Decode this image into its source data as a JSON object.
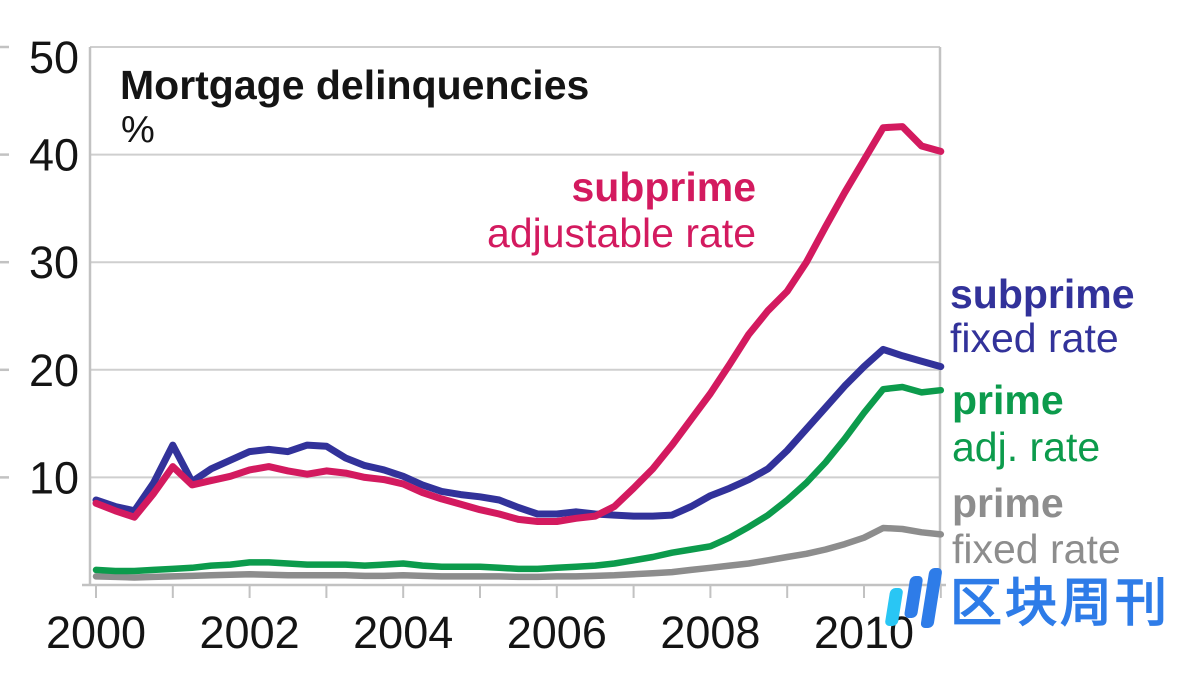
{
  "title": "Mortgage delinquencies",
  "subtitle": "%",
  "watermark": {
    "text": "区块周刊"
  },
  "axes": {
    "y_tick_labels": [
      "50",
      "40",
      "30",
      "20",
      "10"
    ],
    "x_tick_labels": [
      "2000",
      "2002",
      "2004",
      "2006",
      "2008",
      "2010"
    ]
  },
  "chart_data": {
    "type": "line",
    "title": "Mortgage delinquencies",
    "ylabel": "%",
    "xlabel": "",
    "grid": true,
    "legend_position": "annotations-on-chart",
    "xlim": [
      2000,
      2011
    ],
    "ylim": [
      0,
      50
    ],
    "y_ticks": [
      10,
      20,
      30,
      40,
      50
    ],
    "x_ticks": [
      2000,
      2001,
      2002,
      2003,
      2004,
      2005,
      2006,
      2007,
      2008,
      2009,
      2010,
      2011
    ],
    "x_label_ticks": [
      2000,
      2002,
      2004,
      2006,
      2008,
      2010
    ],
    "x_start": 2000,
    "x_step": 0.25,
    "series": [
      {
        "name": "prime fixed rate",
        "label_bold": "prime",
        "label_rest": "fixed rate",
        "color": "#8d8d8d",
        "values": [
          0.8,
          0.75,
          0.7,
          0.75,
          0.8,
          0.85,
          0.9,
          0.95,
          1.0,
          0.95,
          0.9,
          0.9,
          0.9,
          0.9,
          0.85,
          0.85,
          0.9,
          0.85,
          0.8,
          0.8,
          0.8,
          0.8,
          0.75,
          0.75,
          0.8,
          0.8,
          0.85,
          0.9,
          1.0,
          1.1,
          1.2,
          1.4,
          1.6,
          1.8,
          2.0,
          2.3,
          2.6,
          2.9,
          3.3,
          3.8,
          4.4,
          5.3,
          5.2,
          4.9,
          4.7
        ]
      },
      {
        "name": "prime adj. rate",
        "label_bold": "prime",
        "label_rest": "adj. rate",
        "color": "#0c9b4c",
        "values": [
          1.4,
          1.3,
          1.3,
          1.4,
          1.5,
          1.6,
          1.8,
          1.9,
          2.1,
          2.1,
          2.0,
          1.9,
          1.9,
          1.9,
          1.8,
          1.9,
          2.0,
          1.8,
          1.7,
          1.7,
          1.7,
          1.6,
          1.5,
          1.5,
          1.6,
          1.7,
          1.8,
          2.0,
          2.3,
          2.6,
          3.0,
          3.3,
          3.6,
          4.4,
          5.4,
          6.5,
          7.9,
          9.5,
          11.4,
          13.6,
          16.0,
          18.2,
          18.4,
          17.9,
          18.1
        ]
      },
      {
        "name": "subprime fixed rate",
        "label_bold": "subprime",
        "label_rest": "fixed rate",
        "color": "#32329a",
        "values": [
          7.9,
          7.3,
          6.9,
          9.5,
          13.0,
          9.6,
          10.8,
          11.6,
          12.4,
          12.6,
          12.4,
          13.0,
          12.9,
          11.8,
          11.1,
          10.7,
          10.1,
          9.3,
          8.7,
          8.4,
          8.2,
          7.9,
          7.2,
          6.6,
          6.6,
          6.8,
          6.6,
          6.5,
          6.4,
          6.4,
          6.5,
          7.3,
          8.3,
          9.0,
          9.8,
          10.8,
          12.5,
          14.5,
          16.5,
          18.5,
          20.3,
          21.9,
          21.3,
          20.8,
          20.3
        ]
      },
      {
        "name": "subprime adjustable rate",
        "label_bold": "subprime",
        "label_rest": "adjustable rate",
        "color": "#d31a5f",
        "values": [
          7.6,
          6.9,
          6.3,
          8.5,
          11.0,
          9.3,
          9.7,
          10.1,
          10.7,
          11.0,
          10.6,
          10.3,
          10.6,
          10.4,
          10.0,
          9.8,
          9.4,
          8.6,
          8.0,
          7.5,
          7.0,
          6.6,
          6.1,
          5.9,
          5.9,
          6.2,
          6.4,
          7.3,
          9.0,
          10.8,
          13.0,
          15.4,
          17.8,
          20.5,
          23.3,
          25.5,
          27.3,
          30.0,
          33.3,
          36.5,
          39.5,
          42.5,
          42.6,
          40.8,
          40.3
        ]
      }
    ],
    "style": {
      "grid_color": "#cfcfcf",
      "frame_color": "#c2c2c2",
      "text_color": "#141414",
      "logo_blue": "#2e7ce8",
      "logo_cyan": "#29c6f4"
    }
  }
}
